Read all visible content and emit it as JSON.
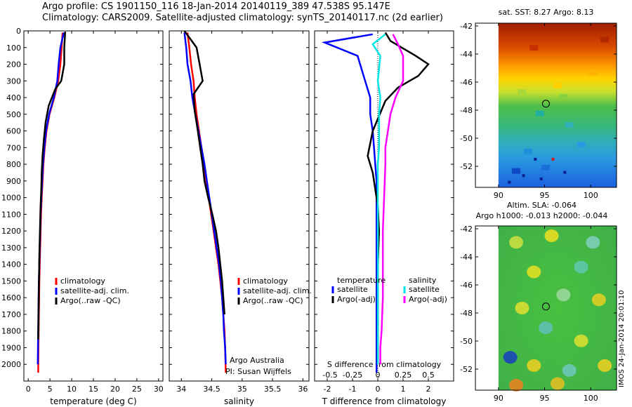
{
  "header": {
    "line1": "Argo profile: CS 1901150_116 18-Jan-2014 20140119_389 47.538S 95.147E",
    "line2": "Climatology: CARS2009. Satellite-adjusted climatology: synTS_20140117.nc (2d earlier)"
  },
  "side_label": "IMOS 24-Jan-2014 20:01:10",
  "chart_data": [
    {
      "type": "line",
      "xlabel": "temperature (deg C)",
      "ylim": [
        2100,
        0
      ],
      "xlim": [
        -1,
        31
      ],
      "xticks": [
        0,
        5,
        10,
        15,
        20,
        25,
        30
      ],
      "yticks": [
        0,
        100,
        200,
        300,
        400,
        500,
        600,
        700,
        800,
        900,
        1000,
        1100,
        1200,
        1300,
        1400,
        1500,
        1600,
        1700,
        1800,
        1900,
        2000
      ],
      "legend": [
        "climatology",
        "satellite-adj. clim.",
        "Argo(..raw -QC)"
      ],
      "series": [
        {
          "name": "climatology",
          "color": "#ff0000",
          "x": [
            7.9,
            7.7,
            7.4,
            6.9,
            6.0,
            4.9,
            4.2,
            3.8,
            3.5,
            3.3,
            3.1,
            2.95,
            2.85,
            2.75,
            2.65,
            2.55,
            2.5,
            2.45,
            2.4,
            2.35,
            2.3
          ],
          "y": [
            10,
            100,
            200,
            300,
            400,
            500,
            600,
            700,
            800,
            900,
            1000,
            1100,
            1200,
            1300,
            1400,
            1500,
            1600,
            1700,
            1800,
            1900,
            2050
          ]
        },
        {
          "name": "satellite-adj. clim.",
          "color": "#0000ff",
          "x": [
            8.2,
            7.4,
            7.0,
            6.7,
            5.9,
            4.8,
            4.1,
            3.7,
            3.4,
            3.2,
            3.0,
            2.85,
            2.75,
            2.65,
            2.55,
            2.45,
            2.4,
            2.35,
            2.3,
            2.25,
            2.2
          ],
          "y": [
            10,
            100,
            200,
            300,
            400,
            500,
            600,
            700,
            800,
            900,
            1000,
            1100,
            1200,
            1300,
            1400,
            1500,
            1600,
            1700,
            1800,
            1900,
            2000
          ]
        },
        {
          "name": "Argo(..raw -QC)",
          "color": "#000000",
          "x": [
            8.5,
            8.4,
            8.3,
            8.3,
            7.6,
            6.2,
            4.7,
            4.0,
            3.6,
            3.3,
            3.1,
            3.0,
            2.85,
            2.75,
            2.65,
            2.55,
            2.5,
            2.45,
            2.4,
            2.35,
            2.3
          ],
          "y": [
            5,
            50,
            100,
            200,
            300,
            350,
            450,
            550,
            650,
            750,
            850,
            950,
            1050,
            1150,
            1250,
            1350,
            1450,
            1550,
            1650,
            1750,
            1850
          ]
        }
      ]
    },
    {
      "type": "line",
      "xlabel": "salinity",
      "xlim": [
        33.8,
        36.1
      ],
      "xticks": [
        34,
        34.5,
        35,
        35.5,
        36
      ],
      "ylim": [
        2100,
        0
      ],
      "legend": [
        "climatology",
        "satellite-adj. clim.",
        "Argo(..raw -QC)"
      ],
      "annotations": [
        "Argo Australia",
        "PI: Susan Wijffels"
      ],
      "series": [
        {
          "name": "climatology",
          "color": "#ff0000",
          "x": [
            34.1,
            34.13,
            34.16,
            34.2,
            34.22,
            34.25,
            34.29,
            34.33,
            34.37,
            34.41,
            34.45,
            34.49,
            34.53,
            34.57,
            34.61,
            34.64,
            34.67,
            34.69,
            34.71,
            34.72,
            34.73
          ],
          "y": [
            10,
            100,
            200,
            300,
            400,
            500,
            600,
            700,
            800,
            900,
            1000,
            1100,
            1200,
            1300,
            1400,
            1500,
            1600,
            1700,
            1800,
            1900,
            2050
          ]
        },
        {
          "name": "satellite-adj. clim.",
          "color": "#0000ff",
          "x": [
            34.05,
            34.08,
            34.1,
            34.15,
            34.18,
            34.23,
            34.28,
            34.33,
            34.38,
            34.42,
            34.46,
            34.5,
            34.54,
            34.58,
            34.62,
            34.65,
            34.67,
            34.69,
            34.7,
            34.72,
            34.73
          ],
          "y": [
            10,
            100,
            200,
            300,
            400,
            500,
            600,
            700,
            800,
            900,
            1000,
            1100,
            1200,
            1300,
            1400,
            1500,
            1600,
            1700,
            1800,
            1900,
            2000
          ]
        },
        {
          "name": "Argo(..raw -QC)",
          "color": "#000000",
          "x": [
            34.05,
            34.15,
            34.25,
            34.3,
            34.35,
            34.2,
            34.22,
            34.27,
            34.31,
            34.35,
            34.38,
            34.44,
            34.51,
            34.57,
            34.61,
            34.64,
            34.67,
            34.69,
            34.71
          ],
          "y": [
            0,
            50,
            100,
            200,
            300,
            380,
            480,
            600,
            700,
            800,
            900,
            1000,
            1100,
            1200,
            1300,
            1400,
            1500,
            1600,
            1700
          ]
        }
      ]
    },
    {
      "type": "line",
      "xlabel": "T difference from climatology",
      "xlabel2": "S difference from climatology",
      "xlim": [
        -2.5,
        3
      ],
      "xticks": [
        -2,
        -1,
        0,
        1,
        2
      ],
      "xticks2": [
        "-0.5",
        "-0.25",
        "0",
        "0.25",
        "0.5"
      ],
      "xticks2_pos": [
        -2,
        -1,
        0,
        1,
        2
      ],
      "ylim": [
        2100,
        0
      ],
      "legend_titles": [
        "temperature",
        "salinity"
      ],
      "legend": [
        "satellite",
        "Argo(-adj)",
        "satellite",
        "Argo(-adj)"
      ],
      "series": [
        {
          "name": "satellite",
          "color": "#0000ff",
          "x": [
            -0.2,
            -2.1,
            -0.8,
            -0.5,
            -0.3,
            -0.3,
            -0.2,
            -0.15,
            -0.1,
            -0.05,
            -0.05,
            -0.05,
            -0.05,
            -0.05,
            -0.05,
            -0.05,
            -0.05
          ],
          "y": [
            20,
            70,
            150,
            300,
            400,
            500,
            600,
            700,
            800,
            900,
            1000,
            1100,
            1300,
            1500,
            1700,
            1900,
            2050
          ]
        },
        {
          "name": "Argo(-adj)",
          "color": "#000000",
          "x": [
            0.3,
            0.5,
            1.5,
            2.0,
            1.6,
            0.8,
            0.3,
            -0.2,
            -0.4,
            -0.2,
            -0.1,
            0.0,
            0.05,
            0.0,
            0.0,
            0.0,
            0.0
          ],
          "y": [
            10,
            60,
            150,
            200,
            270,
            340,
            420,
            600,
            750,
            850,
            950,
            1050,
            1200,
            1400,
            1600,
            1800,
            2000
          ]
        },
        {
          "name": "satellite",
          "color": "#00e6e6",
          "x": [
            0.3,
            -0.2,
            0.1,
            0.0,
            0.1,
            0.05,
            0.05,
            0.05,
            0.0,
            0.0,
            0.0,
            0.0,
            0.0,
            0.0,
            0.0,
            0.0
          ],
          "y": [
            20,
            80,
            150,
            300,
            400,
            500,
            600,
            700,
            800,
            1000,
            1200,
            1400,
            1600,
            1800,
            1900,
            2000
          ]
        },
        {
          "name": "Argo(-adj)",
          "color": "#ff00ff",
          "x": [
            0.6,
            0.8,
            1.0,
            1.0,
            0.7,
            0.5,
            0.4,
            0.3,
            0.3,
            0.25,
            0.2,
            0.2,
            0.2,
            0.15,
            0.1,
            0.1
          ],
          "y": [
            20,
            80,
            150,
            300,
            400,
            500,
            600,
            700,
            800,
            1000,
            1200,
            1400,
            1600,
            1800,
            1900,
            2000
          ]
        }
      ]
    },
    {
      "type": "heatmap",
      "title": "sat. SST: 8.27 Argo: 8.13",
      "xlim": [
        87.5,
        102.8
      ],
      "xticks": [
        90,
        95,
        100
      ],
      "ylim": [
        -53.5,
        -41.8
      ],
      "yticks": [
        -42,
        -44,
        -46,
        -48,
        -50,
        -52
      ],
      "marker": {
        "lon": 95.147,
        "lat": -47.538
      }
    },
    {
      "type": "heatmap",
      "title": "Altim. SLA: -0.064",
      "subtitle": "Argo h1000: -0.013 h2000: -0.044",
      "xlim": [
        87.5,
        102.8
      ],
      "xticks": [
        90,
        95,
        100
      ],
      "ylim": [
        -53.5,
        -41.8
      ],
      "yticks": [
        -42,
        -44,
        -46,
        -48,
        -50,
        -52
      ],
      "marker": {
        "lon": 95.147,
        "lat": -47.538
      }
    }
  ]
}
